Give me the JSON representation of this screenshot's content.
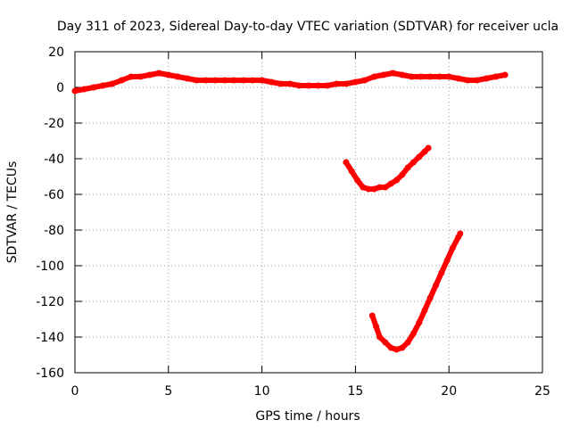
{
  "chart_data": {
    "type": "scatter",
    "title": "Day 311 of 2023, Sidereal Day-to-day VTEC variation (SDTVAR) for receiver ucla",
    "xlabel": "GPS time / hours",
    "ylabel": "SDTVAR / TECUs",
    "xlim": [
      0,
      25
    ],
    "ylim": [
      -160,
      20
    ],
    "xticks": [
      "0",
      "5",
      "10",
      "15",
      "20",
      "25"
    ],
    "yticks": [
      "20",
      "0",
      "-20",
      "-40",
      "-60",
      "-80",
      "-100",
      "-120",
      "-140",
      "-160"
    ],
    "grid": true,
    "series_color": "#ff0000",
    "series": [
      {
        "x": [
          0,
          0.5,
          1,
          1.5,
          2,
          2.5,
          3,
          3.5,
          4,
          4.5,
          5,
          5.5,
          6,
          6.5,
          7,
          7.5,
          8,
          8.5,
          9,
          9.5,
          10,
          10.5,
          11,
          11.5,
          12,
          12.5,
          13,
          13.5,
          14,
          14.5,
          15,
          15.5,
          16,
          16.5,
          17,
          17.5,
          18,
          18.5,
          19,
          19.5,
          20,
          20.5,
          21,
          21.5,
          22,
          22.5,
          23
        ],
        "y": [
          -2,
          -1,
          0,
          1,
          2,
          4,
          6,
          6,
          7,
          8,
          7,
          6,
          5,
          4,
          4,
          4,
          4,
          4,
          4,
          4,
          4,
          3,
          2,
          2,
          1,
          1,
          1,
          1,
          2,
          2,
          3,
          4,
          6,
          7,
          8,
          7,
          6,
          6,
          6,
          6,
          6,
          5,
          4,
          4,
          5,
          6,
          7
        ]
      },
      {
        "x": [
          14.5,
          14.8,
          15.1,
          15.4,
          15.7,
          16.0,
          16.3,
          16.6,
          16.9,
          17.2,
          17.5,
          17.8,
          18.1,
          18.4,
          18.7,
          18.9
        ],
        "y": [
          -42,
          -47,
          -52,
          -56,
          -57,
          -57,
          -56,
          -56,
          -54,
          -52,
          -49,
          -45,
          -42,
          -39,
          -36,
          -34
        ]
      },
      {
        "x": [
          15.9,
          16.1,
          16.3,
          16.6,
          16.9,
          17.2,
          17.5,
          17.8,
          18.1,
          18.4,
          18.7,
          19.0,
          19.3,
          19.6,
          19.9,
          20.2,
          20.5,
          20.6
        ],
        "y": [
          -128,
          -134,
          -140,
          -143,
          -146,
          -147,
          -146,
          -143,
          -138,
          -132,
          -125,
          -118,
          -111,
          -104,
          -97,
          -90,
          -84,
          -82
        ]
      }
    ]
  }
}
